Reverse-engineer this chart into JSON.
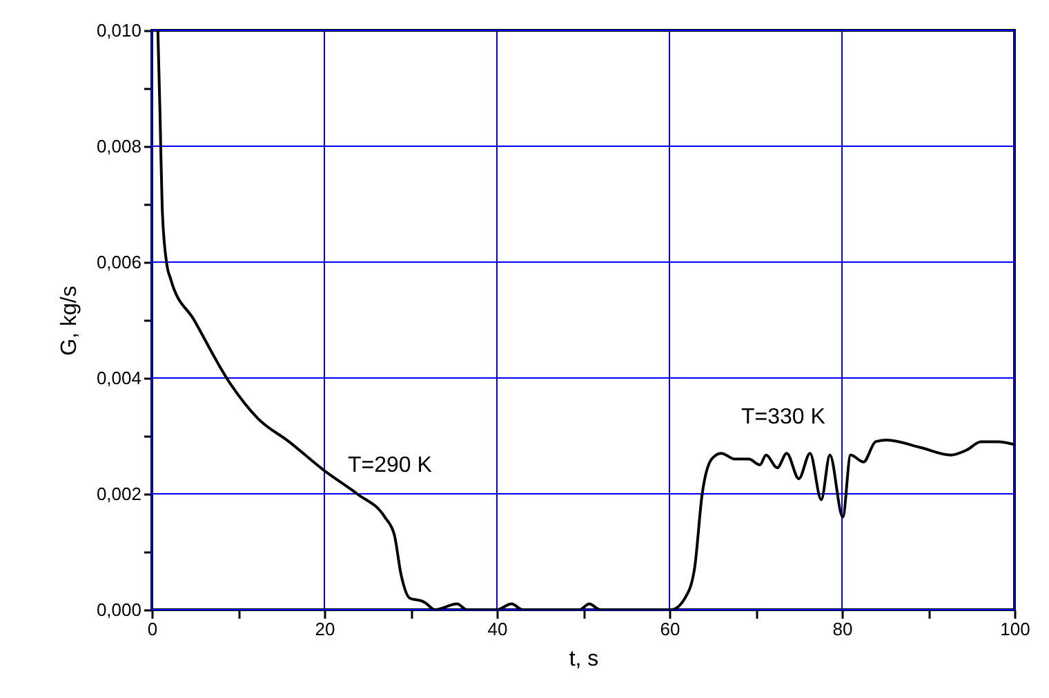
{
  "chart_data": {
    "type": "line",
    "xlabel": "t, s",
    "ylabel": "G, kg/s",
    "x": [
      0.7,
      0.95,
      1.2,
      1.7,
      2.2,
      4.9,
      9.1,
      12.3,
      15.9,
      20,
      23.8,
      27,
      28.1,
      28.9,
      29.9,
      31.3,
      31.7,
      32.8,
      35.4,
      36.5,
      40,
      41.7,
      43,
      49.6,
      50.7,
      52,
      60.2,
      61.8,
      62.9,
      63.8,
      64.9,
      66,
      67.6,
      69.2,
      70.5,
      71.2,
      72.5,
      73.6,
      75,
      76.3,
      77.6,
      78.6,
      80.1,
      81,
      82.5,
      83.9,
      85.2,
      89.1,
      92.6,
      94.5,
      96.1,
      98.1,
      100
    ],
    "series": [
      {
        "color": "#000000",
        "values": [
          0.01,
          0.00855,
          0.00695,
          0.006,
          0.0057,
          0.005,
          0.0039,
          0.0033,
          0.0029,
          0.0024,
          0.002,
          0.0016,
          0.0013,
          0.0006,
          0.0002,
          0.00015,
          0.00012,
          0,
          0.0001,
          0,
          0,
          0.0001,
          0,
          0,
          0.0001,
          0,
          0,
          0.0002,
          0.0007,
          0.002,
          0.0026,
          0.0027,
          0.0026,
          0.0026,
          0.0025,
          0.00267,
          0.00245,
          0.0027,
          0.00226,
          0.0027,
          0.0019,
          0.00267,
          0.0016,
          0.00267,
          0.00255,
          0.0029,
          0.00293,
          0.0028,
          0.00267,
          0.00276,
          0.0029,
          0.0029,
          0.00285
        ]
      }
    ],
    "xlim": [
      0,
      100
    ],
    "ylim": [
      0,
      0.01
    ],
    "xticks": [
      0,
      {
        "value": 10,
        "label": null
      },
      20,
      {
        "value": 30,
        "label": null
      },
      40,
      {
        "value": 50,
        "label": null
      },
      60,
      {
        "value": 70,
        "label": null
      },
      80,
      {
        "value": 90,
        "label": null
      },
      100
    ],
    "yticks": [
      {
        "value": 0,
        "label": "0,000"
      },
      {
        "value": 0.001,
        "label": null
      },
      {
        "value": 0.002,
        "label": "0,002"
      },
      {
        "value": 0.003,
        "label": null
      },
      {
        "value": 0.004,
        "label": "0,004"
      },
      {
        "value": 0.005,
        "label": null
      },
      {
        "value": 0.006,
        "label": "0,006"
      },
      {
        "value": 0.007,
        "label": null
      },
      {
        "value": 0.008,
        "label": "0,008"
      },
      {
        "value": 0.009,
        "label": null
      },
      {
        "value": 0.01,
        "label": "0,010"
      }
    ],
    "grid": true,
    "marker": "none",
    "line_style": "solid",
    "annotations": [
      "T=290 K",
      "T=330 K"
    ]
  }
}
